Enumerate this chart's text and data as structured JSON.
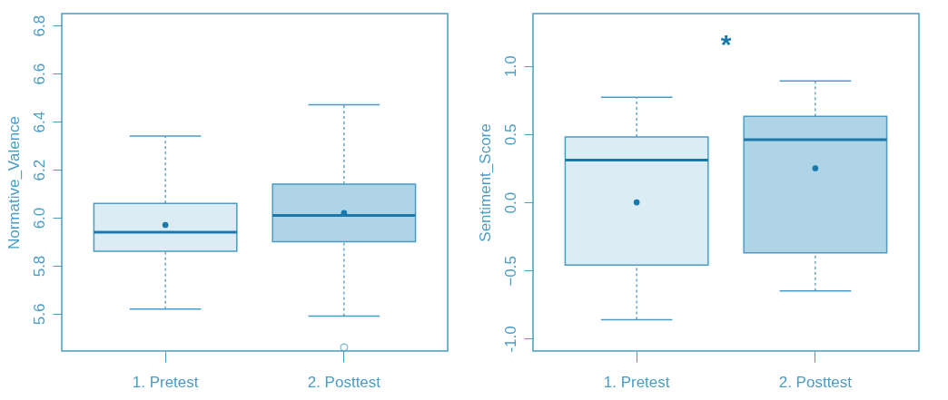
{
  "chart_data": [
    {
      "type": "box",
      "categories": [
        "1. Pretest",
        "2. Posttest"
      ],
      "ylabel": "Normative_Valence",
      "ylim": [
        5.445,
        6.85
      ],
      "yticks": [
        5.6,
        5.8,
        {
          "value": 6,
          "label": "6.0"
        },
        6.2,
        6.4,
        6.6,
        6.8
      ],
      "colors": [
        "#dcecf4",
        "#afd4e5"
      ],
      "grid": false,
      "boxes": [
        {
          "low": 5.62,
          "q1": 5.86,
          "median": 5.94,
          "q3": 6.06,
          "high": 6.34,
          "mean": 5.97
        },
        {
          "low": 5.59,
          "q1": 5.9,
          "median": 6.01,
          "q3": 6.14,
          "high": 6.47,
          "mean": 6.02,
          "outliers": [
            5.46
          ]
        }
      ]
    },
    {
      "type": "box",
      "categories": [
        "1. Pretest",
        "2. Posttest"
      ],
      "ylabel": "Sentiment_Score",
      "ylim": [
        -1.09,
        1.384
      ],
      "yticks": [
        {
          "value": -1,
          "label": "-1.0"
        },
        -0.5,
        {
          "value": 0,
          "label": "0.0"
        },
        0.5,
        {
          "value": 1,
          "label": "1.0"
        }
      ],
      "colors": [
        "#dcecf4",
        "#afd4e5"
      ],
      "grid": false,
      "annotations": [
        "*"
      ],
      "boxes": [
        {
          "low": -0.86,
          "q1": -0.46,
          "median": 0.31,
          "q3": 0.48,
          "high": 0.77,
          "mean": 0.0
        },
        {
          "low": -0.65,
          "q1": -0.37,
          "median": 0.46,
          "q3": 0.63,
          "high": 0.89,
          "mean": 0.25
        }
      ]
    }
  ]
}
